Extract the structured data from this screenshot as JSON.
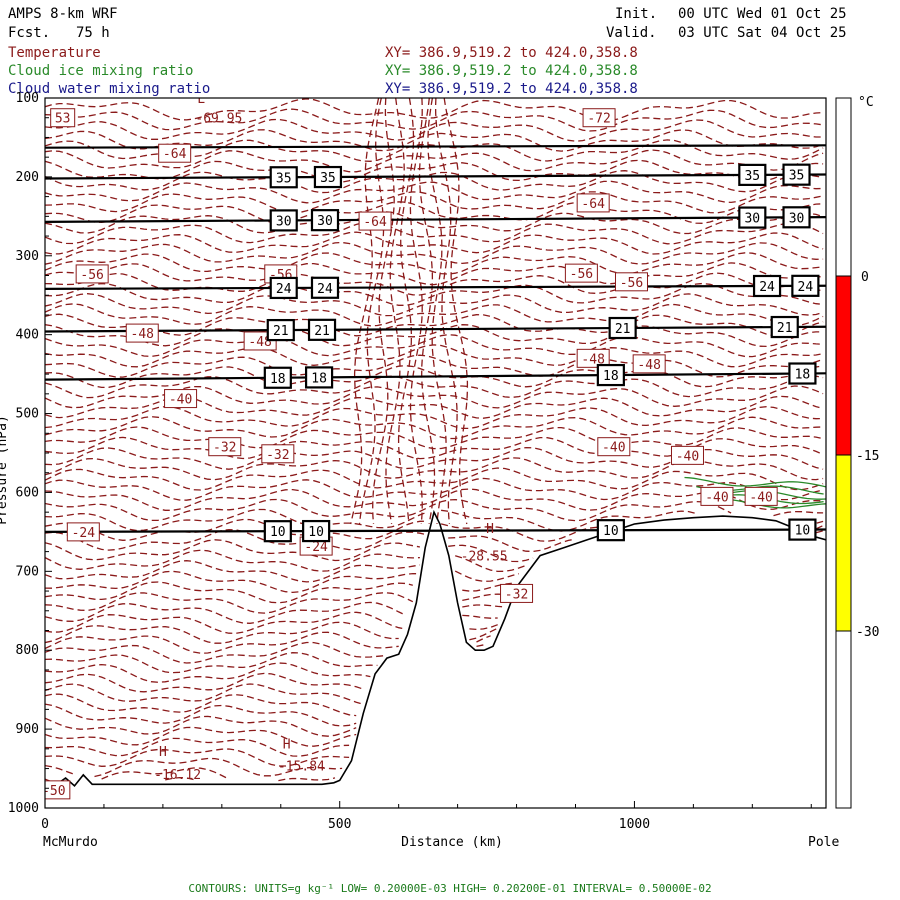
{
  "header": {
    "model": "AMPS 8-km WRF",
    "fcst_label": "Fcst.",
    "fcst_hours": "75 h",
    "init_label": "Init.",
    "init_time": "00 UTC Wed 01 Oct 25",
    "valid_label": "Valid.",
    "valid_time": "03 UTC Sat 04 Oct 25"
  },
  "fields": [
    {
      "name": "Temperature",
      "xy": "XY= 386.9,519.2 to 424.0,358.8",
      "color": "#8b1a1a"
    },
    {
      "name": "Cloud ice mixing ratio",
      "xy": "XY= 386.9,519.2 to 424.0,358.8",
      "color": "#2a8a2a"
    },
    {
      "name": "Cloud water mixing ratio",
      "xy": "XY= 386.9,519.2 to 424.0,358.8",
      "color": "#1a1a8b"
    }
  ],
  "colorbar": {
    "unit": "°C",
    "ticks": [
      "0",
      "-15",
      "-30"
    ],
    "bands": [
      {
        "from": "top",
        "to": 0,
        "color": "#ffffff"
      },
      {
        "from": 0,
        "to": -15,
        "color": "#ff0000"
      },
      {
        "from": -15,
        "to": -30,
        "color": "#ffff00"
      },
      {
        "from": -30,
        "to": "bottom",
        "color": "#ffffff"
      }
    ]
  },
  "footer": "CONTOURS:  UNITS=g kg⁻¹  LOW= 0.20000E-03  HIGH= 0.20200E-01  INTERVAL=  0.50000E-02",
  "chart_data": {
    "type": "cross-section",
    "xlabel": "Distance (km)",
    "x_ticks": [
      0,
      500,
      1000
    ],
    "x_range": [
      0,
      1325
    ],
    "x_end_labels": {
      "left": "McMurdo",
      "right": "Pole"
    },
    "y_ticks": [
      100,
      200,
      300,
      400,
      500,
      600,
      700,
      800,
      900,
      1000
    ],
    "y_range": [
      100,
      1000
    ],
    "y_inverted": true,
    "ylabel_partial": "Pressure (hPa)",
    "terrain_surface": {
      "x": [
        0,
        20,
        35,
        50,
        65,
        80,
        100,
        200,
        300,
        400,
        470,
        490,
        500,
        520,
        540,
        560,
        580,
        600,
        615,
        630,
        645,
        660,
        670,
        685,
        700,
        715,
        730,
        745,
        760,
        780,
        800,
        840,
        880,
        920,
        960,
        1000,
        1050,
        1100,
        1150,
        1200,
        1240,
        1270,
        1300,
        1325
      ],
      "p": [
        975,
        970,
        962,
        972,
        958,
        970,
        970,
        970,
        970,
        970,
        970,
        968,
        965,
        940,
        880,
        830,
        810,
        805,
        780,
        740,
        670,
        625,
        640,
        680,
        740,
        790,
        800,
        800,
        795,
        760,
        720,
        680,
        670,
        660,
        650,
        640,
        635,
        632,
        630,
        632,
        636,
        645,
        655,
        660
      ]
    },
    "theta_lines": [
      {
        "label": "35",
        "p_left": 202,
        "p_right": 197,
        "labels_x": [
          405,
          480,
          1200,
          1275
        ]
      },
      {
        "label": "30",
        "p_left": 257,
        "p_right": 251,
        "labels_x": [
          405,
          475,
          1200,
          1275
        ]
      },
      {
        "label": "24",
        "p_left": 342,
        "p_right": 338,
        "labels_x": [
          405,
          475,
          1225,
          1290
        ]
      },
      {
        "label": "21",
        "p_left": 396,
        "p_right": 390,
        "labels_x": [
          400,
          470,
          980,
          1255
        ]
      },
      {
        "label": "18",
        "p_left": 457,
        "p_right": 449,
        "labels_x": [
          395,
          465,
          960,
          1285
        ]
      },
      {
        "label": "10",
        "p_left": 650,
        "p_right": 647,
        "labels_x": [
          395,
          460,
          960,
          1285
        ]
      },
      {
        "label": "",
        "p_left": 163,
        "p_right": 160,
        "labels_x": []
      }
    ],
    "temperature_labels": [
      {
        "text": "53",
        "x": 30,
        "p": 125
      },
      {
        "text": "-69.95",
        "x": 295,
        "p": 125
      },
      {
        "text": "-72",
        "x": 940,
        "p": 125
      },
      {
        "text": "-64",
        "x": 220,
        "p": 170
      },
      {
        "text": "-64",
        "x": 930,
        "p": 233
      },
      {
        "text": "-64",
        "x": 560,
        "p": 256
      },
      {
        "text": "-56",
        "x": 80,
        "p": 323
      },
      {
        "text": "-56",
        "x": 400,
        "p": 323
      },
      {
        "text": "-56",
        "x": 910,
        "p": 322
      },
      {
        "text": "-56",
        "x": 995,
        "p": 333
      },
      {
        "text": "-48",
        "x": 165,
        "p": 398
      },
      {
        "text": "-48",
        "x": 365,
        "p": 408
      },
      {
        "text": "-48",
        "x": 930,
        "p": 430
      },
      {
        "text": "-48",
        "x": 1025,
        "p": 437
      },
      {
        "text": "-40",
        "x": 230,
        "p": 481
      },
      {
        "text": "-40",
        "x": 965,
        "p": 542
      },
      {
        "text": "-40",
        "x": 1090,
        "p": 553
      },
      {
        "text": "-40",
        "x": 1140,
        "p": 605
      },
      {
        "text": "-40",
        "x": 1215,
        "p": 605
      },
      {
        "text": "-32",
        "x": 305,
        "p": 542
      },
      {
        "text": "-32",
        "x": 395,
        "p": 551
      },
      {
        "text": "-32",
        "x": 800,
        "p": 728
      },
      {
        "text": "-24",
        "x": 65,
        "p": 650
      },
      {
        "text": "-24",
        "x": 460,
        "p": 668
      },
      {
        "text": "-28.55",
        "x": 745,
        "p": 680
      },
      {
        "text": "-16.12",
        "x": 225,
        "p": 957
      },
      {
        "text": "-15.84",
        "x": 435,
        "p": 946
      },
      {
        "text": "-50",
        "x": 15,
        "p": 977
      }
    ],
    "extrema": [
      {
        "text": "L",
        "x": 265,
        "p": 100
      },
      {
        "text": "H",
        "x": 755,
        "p": 645
      },
      {
        "text": "H",
        "x": 200,
        "p": 928
      },
      {
        "text": "H",
        "x": 410,
        "p": 918
      }
    ]
  }
}
